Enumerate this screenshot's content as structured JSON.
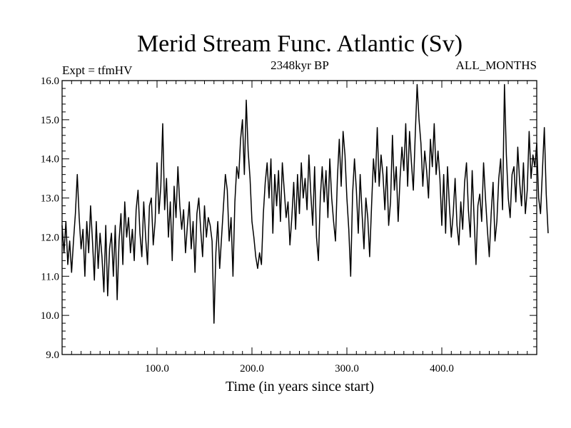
{
  "chart_data": {
    "type": "line",
    "title": "Merid Stream Func. Atlantic (Sv)",
    "subtitle": "2348kyr BP",
    "experiment_label": "Expt = tfmHV",
    "season_label": "ALL_MONTHS",
    "xlabel": "Time (in years since start)",
    "ylabel": "",
    "xlim": [
      0,
      500
    ],
    "ylim": [
      9.0,
      16.0
    ],
    "x_ticks": [
      100,
      200,
      300,
      400
    ],
    "x_tick_labels": [
      "100.0",
      "200.0",
      "300.0",
      "400.0"
    ],
    "y_ticks": [
      9,
      10,
      11,
      12,
      13,
      14,
      15,
      16
    ],
    "y_tick_labels": [
      "9.0",
      "10.0",
      "11.0",
      "12.0",
      "13.0",
      "14.0",
      "15.0",
      "16.0"
    ],
    "grid": false,
    "legend": "none",
    "series": [
      {
        "name": "Merid Stream Func. Atlantic",
        "color": "#000000",
        "x_start": 0,
        "x_step": 2,
        "values": [
          12.3,
          11.6,
          12.4,
          11.3,
          11.9,
          11.1,
          11.9,
          12.6,
          13.6,
          12.5,
          11.7,
          12.2,
          11.0,
          12.4,
          11.6,
          12.8,
          11.9,
          10.9,
          12.4,
          11.2,
          12.1,
          11.5,
          10.6,
          12.3,
          10.5,
          11.7,
          12.1,
          11.0,
          12.3,
          10.4,
          11.9,
          12.6,
          11.3,
          12.9,
          12.0,
          12.5,
          11.6,
          12.2,
          11.4,
          12.7,
          13.2,
          12.1,
          11.5,
          12.9,
          12.0,
          11.3,
          12.8,
          13.0,
          11.8,
          12.4,
          13.9,
          12.6,
          13.3,
          14.9,
          12.7,
          13.5,
          12.0,
          12.9,
          11.4,
          13.3,
          12.5,
          13.8,
          12.8,
          12.2,
          12.7,
          11.6,
          12.3,
          12.9,
          11.7,
          12.4,
          11.1,
          12.6,
          13.0,
          12.2,
          11.5,
          12.8,
          12.0,
          12.5,
          12.3,
          11.9,
          9.8,
          11.6,
          12.4,
          11.2,
          12.0,
          12.8,
          13.6,
          13.2,
          11.9,
          12.5,
          11.0,
          12.9,
          13.8,
          13.5,
          14.5,
          15.0,
          13.6,
          15.5,
          14.2,
          13.5,
          12.4,
          12.0,
          11.5,
          11.2,
          11.6,
          11.3,
          12.6,
          13.4,
          13.9,
          13.0,
          14.0,
          12.1,
          13.6,
          12.8,
          13.7,
          12.4,
          13.9,
          13.2,
          12.5,
          12.9,
          11.8,
          12.5,
          13.4,
          12.2,
          13.6,
          12.6,
          13.9,
          13.0,
          13.5,
          12.7,
          14.1,
          13.1,
          12.3,
          13.8,
          12.0,
          11.4,
          13.0,
          13.8,
          12.9,
          13.7,
          12.5,
          14.0,
          13.0,
          12.4,
          11.9,
          13.5,
          14.5,
          13.3,
          14.7,
          14.1,
          13.0,
          12.2,
          11.0,
          13.1,
          14.0,
          13.2,
          12.1,
          13.6,
          12.6,
          11.7,
          13.0,
          12.5,
          11.5,
          12.8,
          14.0,
          13.4,
          14.8,
          13.3,
          14.1,
          13.6,
          12.7,
          13.8,
          12.3,
          12.9,
          14.6,
          13.2,
          13.8,
          12.4,
          13.5,
          14.3,
          13.7,
          14.9,
          13.3,
          14.7,
          13.9,
          13.2,
          14.6,
          15.9,
          15.0,
          14.4,
          13.3,
          14.2,
          13.7,
          13.0,
          14.5,
          13.8,
          14.9,
          13.6,
          14.2,
          13.5,
          12.3,
          13.6,
          12.1,
          13.8,
          12.8,
          12.0,
          12.6,
          13.5,
          12.3,
          11.8,
          12.9,
          12.2,
          13.4,
          13.9,
          12.7,
          12.0,
          13.7,
          12.5,
          11.3,
          12.8,
          13.1,
          12.4,
          13.9,
          13.0,
          12.2,
          11.5,
          12.6,
          13.4,
          11.9,
          12.4,
          13.5,
          14.0,
          12.7,
          15.9,
          14.1,
          13.0,
          12.5,
          13.6,
          13.8,
          12.9,
          14.3,
          13.4,
          12.8,
          13.9,
          12.6,
          13.2,
          14.7,
          13.5,
          14.1,
          13.8,
          14.4,
          13.0,
          12.6,
          13.7,
          14.8,
          13.1,
          12.1
        ]
      }
    ]
  }
}
